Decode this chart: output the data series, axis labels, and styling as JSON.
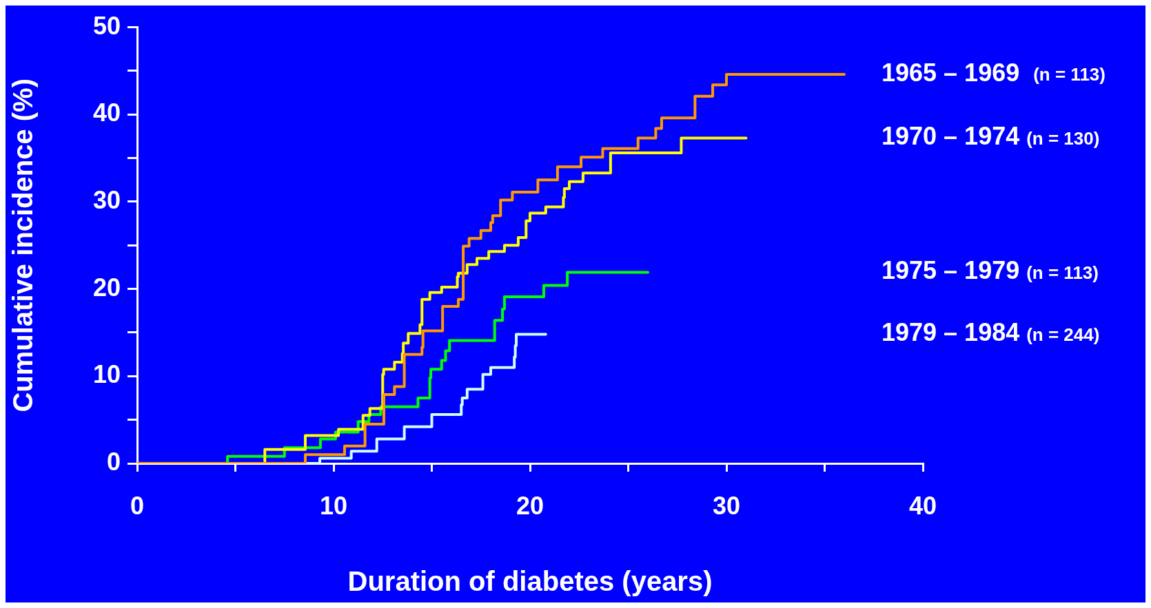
{
  "chart_data": {
    "type": "step",
    "xlabel": "Duration of diabetes (years)",
    "ylabel": "Cumulative incidence (%)",
    "xlim": [
      0,
      40
    ],
    "xticks": [
      0,
      {
        "value": 5,
        "label": null
      },
      10,
      {
        "value": 15,
        "label": null
      },
      20,
      {
        "value": 25,
        "label": null
      },
      30,
      {
        "value": 35,
        "label": null
      },
      40
    ],
    "ylim": [
      0,
      50
    ],
    "yticks": [
      0,
      {
        "value": 5,
        "label": null
      },
      10,
      {
        "value": 15,
        "label": null
      },
      20,
      {
        "value": 25,
        "label": null
      },
      30,
      {
        "value": 35,
        "label": null
      },
      40,
      {
        "value": 45,
        "label": null
      },
      50
    ],
    "grid": false,
    "legend": false,
    "series": [
      {
        "name": "1965 – 1969  (n = 113)",
        "color": "#ff9900",
        "x": [
          0,
          8.56,
          10.56,
          11.6,
          12.56,
          13.1,
          13.6,
          14.5,
          14.55,
          15.55,
          16.35,
          16.6,
          16.9,
          17.5,
          18.0,
          18.1,
          18.5,
          19.1,
          20.4,
          21.4,
          22.6,
          23.7,
          25.5,
          26.4,
          26.7,
          28.4,
          29.3,
          30.0,
          36.0
        ],
        "values": [
          0,
          1.0,
          2.0,
          4.5,
          7.9,
          8.8,
          12.5,
          13.3,
          15.2,
          18.0,
          18.8,
          24.9,
          25.8,
          26.7,
          27.6,
          28.4,
          30.2,
          31.1,
          32.5,
          34.0,
          35.1,
          36.1,
          37.3,
          38.4,
          39.6,
          42.1,
          43.4,
          44.6,
          44.6
        ]
      },
      {
        "name": "1970 – 1974 (n = 130)",
        "color": "#ffff00",
        "x": [
          0,
          6.5,
          8.56,
          10.25,
          11.5,
          11.85,
          12.5,
          12.55,
          13.1,
          13.5,
          13.55,
          13.8,
          14.4,
          14.5,
          14.9,
          15.5,
          16.3,
          16.35,
          16.8,
          17.3,
          17.9,
          18.7,
          19.4,
          19.8,
          20.0,
          20.8,
          21.7,
          21.75,
          22.0,
          22.7,
          24.1,
          27.7,
          31.0
        ],
        "values": [
          0,
          1.6,
          3.2,
          3.9,
          5.5,
          6.3,
          10.2,
          10.8,
          11.6,
          12.6,
          13.8,
          14.9,
          15.9,
          18.8,
          19.6,
          20.2,
          21.4,
          21.8,
          22.8,
          23.5,
          24.3,
          25.0,
          25.9,
          27.8,
          28.7,
          29.4,
          30.5,
          31.5,
          32.3,
          33.3,
          35.6,
          37.3,
          37.3
        ]
      },
      {
        "name": "1975 – 1979 (n = 113)",
        "color": "#00ff00",
        "x": [
          0,
          4.6,
          7.5,
          9.33,
          10.1,
          11.25,
          11.8,
          12.4,
          14.3,
          14.9,
          14.95,
          15.5,
          15.7,
          15.9,
          18.2,
          18.6,
          18.7,
          20.7,
          21.9,
          26.0
        ],
        "values": [
          0,
          0.8,
          1.8,
          2.8,
          3.6,
          4.8,
          5.6,
          6.5,
          7.5,
          9.8,
          10.8,
          11.8,
          12.9,
          14.1,
          16.4,
          17.7,
          19.1,
          20.4,
          21.9,
          21.9
        ]
      },
      {
        "name": "1979 – 1984 (n = 244)",
        "color": "#ccffff",
        "x": [
          0,
          9.3,
          10.9,
          12.2,
          13.6,
          15.0,
          16.5,
          16.55,
          16.8,
          17.6,
          18.0,
          19.2,
          19.25,
          19.3,
          20.8
        ],
        "values": [
          0,
          0.6,
          1.4,
          2.8,
          4.2,
          5.6,
          6.7,
          7.5,
          8.5,
          10.2,
          11.0,
          12.2,
          13.5,
          14.8,
          14.8
        ]
      }
    ]
  }
}
